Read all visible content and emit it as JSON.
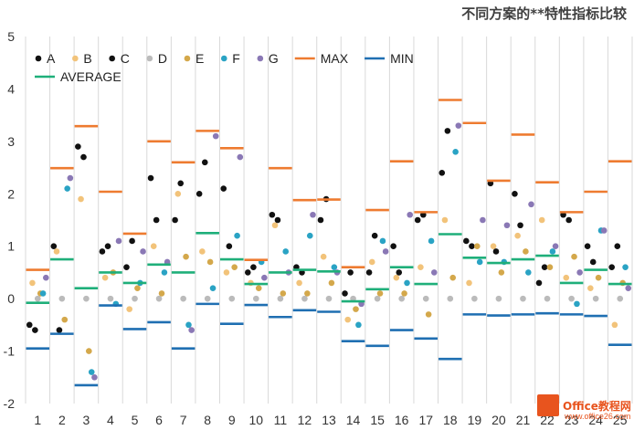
{
  "chart_data": {
    "type": "scatter",
    "title": "不同方案的**特性指标比较",
    "categories": [
      "1",
      "2",
      "3",
      "4",
      "5",
      "6",
      "7",
      "8",
      "9",
      "10",
      "11",
      "12",
      "13",
      "14",
      "15",
      "16",
      "17",
      "18",
      "19",
      "20",
      "21",
      "22",
      "23",
      "24",
      "25"
    ],
    "ylim": [
      -2,
      5
    ],
    "yticks": [
      "-2",
      "-1",
      "0",
      "1",
      "2",
      "3",
      "4",
      "5"
    ],
    "grid": "vertical lines between categories",
    "legend_position": "top-left",
    "colors": {
      "A": "#111111",
      "B": "#f2c37a",
      "C": "#111111",
      "D": "#bbbbbb",
      "E": "#d4a84b",
      "F": "#2aa3c4",
      "G": "#8a78b5",
      "MAX": "#ee7b30",
      "MIN": "#1f6fb2",
      "AVERAGE": "#1faf7a"
    },
    "series": [
      {
        "name": "A",
        "kind": "dot",
        "values": [
          -0.5,
          1.0,
          2.9,
          0.9,
          0.6,
          2.3,
          1.5,
          2.0,
          2.1,
          0.5,
          1.6,
          0.6,
          1.5,
          0.1,
          0.5,
          1.0,
          1.5,
          2.4,
          1.1,
          2.2,
          2.0,
          0.3,
          1.6,
          1.0,
          0.6
        ]
      },
      {
        "name": "B",
        "kind": "dot",
        "values": [
          0.3,
          0.9,
          1.9,
          0.4,
          -0.2,
          1.0,
          2.0,
          0.9,
          0.5,
          0.3,
          1.4,
          0.3,
          0.8,
          -0.4,
          0.7,
          0.4,
          0.6,
          1.5,
          0.3,
          1.0,
          1.2,
          1.5,
          0.4,
          0.2,
          -0.5
        ]
      },
      {
        "name": "C",
        "kind": "dot",
        "values": [
          -0.6,
          -0.6,
          2.7,
          1.0,
          1.1,
          1.5,
          2.2,
          2.6,
          1.0,
          0.6,
          1.5,
          0.5,
          1.9,
          0.5,
          1.2,
          0.5,
          1.6,
          3.2,
          1.0,
          0.9,
          1.4,
          0.6,
          1.5,
          0.7,
          1.0
        ]
      },
      {
        "name": "D",
        "kind": "dot",
        "values": [
          0,
          0,
          0,
          0,
          0,
          0,
          0,
          0,
          0,
          0,
          0,
          0,
          0,
          0,
          0,
          0,
          0,
          0,
          0,
          0,
          0,
          0,
          0,
          0,
          0
        ]
      },
      {
        "name": "E",
        "kind": "dot",
        "values": [
          0.1,
          -0.4,
          -1.0,
          0.5,
          0.2,
          0.1,
          0.8,
          0.7,
          0.6,
          0.2,
          0.1,
          0.1,
          0.3,
          -0.2,
          0.1,
          0.1,
          -0.3,
          0.4,
          1.0,
          0.5,
          0.9,
          0.6,
          0.8,
          0.4,
          0.3
        ]
      },
      {
        "name": "F",
        "kind": "dot",
        "values": [
          0.1,
          2.1,
          -1.4,
          -0.1,
          0.3,
          0.5,
          -0.5,
          0.2,
          1.2,
          0.7,
          0.9,
          1.2,
          0.6,
          -0.5,
          1.1,
          0.3,
          1.1,
          2.8,
          0.7,
          0.7,
          0.5,
          0.9,
          -0.1,
          1.3,
          0.6
        ]
      },
      {
        "name": "G",
        "kind": "dot",
        "values": [
          0.4,
          2.3,
          -1.5,
          1.1,
          0.9,
          0.7,
          -0.6,
          3.1,
          2.7,
          0.4,
          0.5,
          1.6,
          0.5,
          -0.1,
          0.9,
          1.6,
          0.5,
          3.3,
          1.5,
          1.4,
          1.8,
          1.0,
          0.5,
          1.3,
          0.2
        ]
      },
      {
        "name": "MAX",
        "kind": "dash",
        "values": [
          0.55,
          2.49,
          3.29,
          2.04,
          1.24,
          3.0,
          2.6,
          3.2,
          2.87,
          0.74,
          2.49,
          1.88,
          1.89,
          0.6,
          1.69,
          2.62,
          1.65,
          3.79,
          3.35,
          2.25,
          3.13,
          2.22,
          1.65,
          2.04,
          2.62
        ]
      },
      {
        "name": "MIN",
        "kind": "dash",
        "values": [
          -0.95,
          -0.67,
          -1.65,
          -0.13,
          -0.58,
          -0.45,
          -0.95,
          -0.1,
          -0.48,
          -0.12,
          -0.35,
          -0.22,
          -0.25,
          -0.81,
          -0.9,
          -0.6,
          -0.76,
          -1.15,
          -0.3,
          -0.32,
          -0.3,
          -0.28,
          -0.3,
          -0.33,
          -0.88
        ]
      },
      {
        "name": "AVERAGE",
        "kind": "dash",
        "values": [
          -0.08,
          0.75,
          0.2,
          0.5,
          0.3,
          0.65,
          0.5,
          1.25,
          0.75,
          0.28,
          0.5,
          0.55,
          0.52,
          -0.05,
          0.18,
          0.6,
          0.28,
          1.23,
          0.78,
          0.68,
          0.75,
          0.82,
          0.3,
          0.55,
          0.28
        ]
      }
    ]
  },
  "watermark": {
    "brand": "Office教程网",
    "url": "www.office26.com"
  }
}
